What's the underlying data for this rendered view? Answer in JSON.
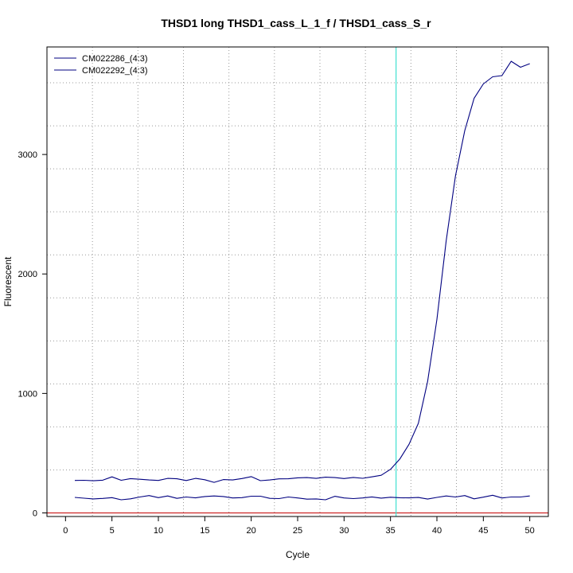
{
  "chart_data": {
    "type": "line",
    "title": "THSD1 long THSD1_cass_L_1_f / THSD1_cass_S_r",
    "xlabel": "Cycle",
    "ylabel": "Fluorescent",
    "xlim": [
      -2,
      52
    ],
    "ylim": [
      -30,
      3900
    ],
    "x_ticks": [
      0,
      5,
      10,
      15,
      20,
      25,
      30,
      35,
      40,
      45,
      50
    ],
    "y_ticks": [
      0,
      1000,
      2000,
      3000
    ],
    "x_grid": [
      2.9,
      7.8,
      12.7,
      17.6,
      22.5,
      27.4,
      32.3,
      37.2,
      42.1,
      47.0
    ],
    "y_grid": [
      0,
      360,
      720,
      1080,
      1440,
      1800,
      2160,
      2520,
      2880,
      3240,
      3600
    ],
    "grid": true,
    "legend_position": "top-left",
    "threshold": {
      "cycle": 35.6,
      "color": "#40E0D0"
    },
    "baseline": {
      "value": 0,
      "color": "#CD2626"
    },
    "colors": {
      "series": "#000080",
      "grid": "#999999"
    },
    "x": [
      1,
      2,
      3,
      4,
      5,
      6,
      7,
      8,
      9,
      10,
      11,
      12,
      13,
      14,
      15,
      16,
      17,
      18,
      19,
      20,
      21,
      22,
      23,
      24,
      25,
      26,
      27,
      28,
      29,
      30,
      31,
      32,
      33,
      34,
      35,
      36,
      37,
      38,
      39,
      40,
      41,
      42,
      43,
      44,
      45,
      46,
      47,
      48,
      49,
      50
    ],
    "series": [
      {
        "name": "CM022286_(4:3)",
        "values": [
          272,
          273,
          269,
          274,
          302,
          273,
          287,
          282,
          276,
          272,
          289,
          286,
          271,
          289,
          278,
          256,
          279,
          276,
          288,
          304,
          270,
          276,
          285,
          286,
          294,
          296,
          289,
          299,
          296,
          288,
          297,
          290,
          302,
          315,
          365,
          450,
          575,
          750,
          1100,
          1620,
          2280,
          2820,
          3200,
          3470,
          3590,
          3650,
          3660,
          3780,
          3730,
          3760
        ]
      },
      {
        "name": "CM022292_(4:3)",
        "values": [
          130,
          123,
          117,
          121,
          128,
          110,
          118,
          133,
          145,
          128,
          142,
          122,
          133,
          126,
          137,
          142,
          137,
          125,
          128,
          140,
          140,
          122,
          120,
          133,
          125,
          115,
          117,
          110,
          139,
          125,
          120,
          125,
          134,
          124,
          131,
          127,
          126,
          129,
          116,
          130,
          142,
          133,
          145,
          118,
          132,
          148,
          125,
          133,
          133,
          142
        ]
      }
    ]
  }
}
